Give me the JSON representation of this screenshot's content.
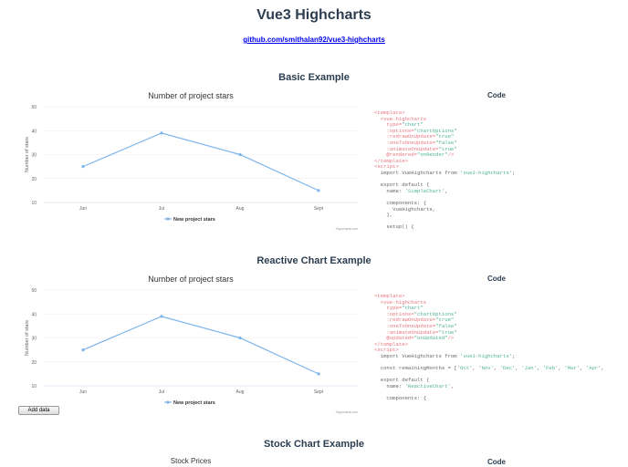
{
  "header": {
    "title": "Vue3 Highcharts",
    "link": "github.com/smithalan92/vue3-highcharts"
  },
  "code_heading": "Code",
  "accent": "#7cb5ec",
  "sections": [
    {
      "title": "Basic Example",
      "chart_data": {
        "type": "line",
        "title": "Number of project stars",
        "categories": [
          "Jun",
          "Jul",
          "Aug",
          "Sept"
        ],
        "series": [
          {
            "name": "New project stars",
            "values": [
              25,
              39,
              30,
              15
            ]
          }
        ],
        "ylabel": "Number of stars",
        "ylim": [
          10,
          50
        ],
        "yticks": [
          10,
          20,
          30,
          40,
          50
        ],
        "grid": true,
        "legend": "bottom",
        "credits": "Highcharts.com"
      },
      "code": [
        [
          [
            "<template>",
            "t"
          ]
        ],
        [
          [
            "  <vue-highcharts",
            "t"
          ]
        ],
        [
          [
            "    type=",
            "t"
          ],
          [
            "\"chart\"",
            "s"
          ]
        ],
        [
          [
            "    :options=",
            "t"
          ],
          [
            "\"chartOptions\"",
            "s"
          ]
        ],
        [
          [
            "    :redrawOnUpdate=",
            "t"
          ],
          [
            "\"true\"",
            "s"
          ]
        ],
        [
          [
            "    :oneToOneUpdate=",
            "t"
          ],
          [
            "\"false\"",
            "s"
          ]
        ],
        [
          [
            "    :animateOnUpdate=",
            "t"
          ],
          [
            "\"true\"",
            "s"
          ]
        ],
        [
          [
            "    @rendered=",
            "t"
          ],
          [
            "\"onRender\"",
            "s"
          ],
          [
            "/>",
            "t"
          ]
        ],
        [
          [
            "</template>",
            "t"
          ]
        ],
        [
          [
            "<script>",
            "t"
          ]
        ],
        [
          [
            "  import VueHighcharts from ",
            "p"
          ],
          [
            "'vue3-highcharts'",
            "s"
          ],
          [
            ";",
            "p"
          ]
        ],
        [
          [
            "",
            "p"
          ]
        ],
        [
          [
            "  export default {",
            "p"
          ]
        ],
        [
          [
            "    name: ",
            "p"
          ],
          [
            "'SimpleChart'",
            "s"
          ],
          [
            ",",
            "p"
          ]
        ],
        [
          [
            "",
            "p"
          ]
        ],
        [
          [
            "    components: {",
            "p"
          ]
        ],
        [
          [
            "      VueHighcharts,",
            "p"
          ]
        ],
        [
          [
            "    },",
            "p"
          ]
        ],
        [
          [
            "",
            "p"
          ]
        ],
        [
          [
            "    setup() {",
            "p"
          ]
        ]
      ]
    },
    {
      "title": "Reactive Chart Example",
      "chart_data": {
        "type": "line",
        "title": "Number of project stars",
        "categories": [
          "Jun",
          "Jul",
          "Aug",
          "Sept"
        ],
        "series": [
          {
            "name": "New project stars",
            "values": [
              25,
              39,
              30,
              15
            ]
          }
        ],
        "ylabel": "Number of stars",
        "ylim": [
          10,
          50
        ],
        "yticks": [
          10,
          20,
          30,
          40,
          50
        ],
        "grid": true,
        "legend": "bottom",
        "credits": "Highcharts.com"
      },
      "button": "Add data",
      "code": [
        [
          [
            "<template>",
            "t"
          ]
        ],
        [
          [
            "  <vue-highcharts",
            "t"
          ]
        ],
        [
          [
            "    type=",
            "t"
          ],
          [
            "\"chart\"",
            "s"
          ]
        ],
        [
          [
            "    :options=",
            "t"
          ],
          [
            "\"chartOptions\"",
            "s"
          ]
        ],
        [
          [
            "    :redrawOnUpdate=",
            "t"
          ],
          [
            "\"true\"",
            "s"
          ]
        ],
        [
          [
            "    :oneToOneUpdate=",
            "t"
          ],
          [
            "\"false\"",
            "s"
          ]
        ],
        [
          [
            "    :animateOnUpdate=",
            "t"
          ],
          [
            "\"true\"",
            "s"
          ]
        ],
        [
          [
            "    @updated=",
            "t"
          ],
          [
            "\"onUpdated\"",
            "s"
          ],
          [
            "/>",
            "t"
          ]
        ],
        [
          [
            "</template>",
            "t"
          ]
        ],
        [
          [
            "<script>",
            "t"
          ]
        ],
        [
          [
            "  import VueHighcharts from ",
            "p"
          ],
          [
            "'vue3-highcharts'",
            "s"
          ],
          [
            ";",
            "p"
          ]
        ],
        [
          [
            "",
            "p"
          ]
        ],
        [
          [
            "  const remainingMonths = [",
            "p"
          ],
          [
            "'Oct'",
            "s"
          ],
          [
            ", ",
            "p"
          ],
          [
            "'Nov'",
            "s"
          ],
          [
            ", ",
            "p"
          ],
          [
            "'Dec'",
            "s"
          ],
          [
            ", ",
            "p"
          ],
          [
            "'Jan'",
            "s"
          ],
          [
            ", ",
            "p"
          ],
          [
            "'Feb'",
            "s"
          ],
          [
            ", ",
            "p"
          ],
          [
            "'Mar'",
            "s"
          ],
          [
            ", ",
            "p"
          ],
          [
            "'Apr'",
            "s"
          ],
          [
            ",",
            "p"
          ]
        ],
        [
          [
            "",
            "p"
          ]
        ],
        [
          [
            "  export default {",
            "p"
          ]
        ],
        [
          [
            "    name: ",
            "p"
          ],
          [
            "'ReactiveChart'",
            "s"
          ],
          [
            ",",
            "p"
          ]
        ],
        [
          [
            "",
            "p"
          ]
        ],
        [
          [
            "    components: {",
            "p"
          ]
        ]
      ]
    },
    {
      "title": "Stock Chart Example",
      "chart_title": "Stock Prices"
    }
  ]
}
